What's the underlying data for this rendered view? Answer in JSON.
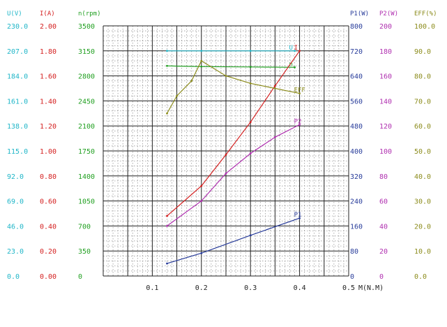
{
  "chart_data": {
    "type": "line",
    "title": "",
    "xlabel": "M(N.M)",
    "x_ticks": [
      "0.1",
      "0.2",
      "0.3",
      "0.4",
      "0.5"
    ],
    "xlim": [
      0,
      0.5
    ],
    "grid": true,
    "axes": [
      {
        "key": "U",
        "header": "U(V)",
        "color": "#20b6c8",
        "ticks": [
          "0.0",
          "23.0",
          "46.0",
          "69.0",
          "92.0",
          "115.0",
          "138.0",
          "161.0",
          "184.0",
          "207.0",
          "230.0"
        ],
        "range": [
          0,
          230
        ]
      },
      {
        "key": "I",
        "header": "I(A)",
        "color": "#d42020",
        "ticks": [
          "0.00",
          "0.20",
          "0.40",
          "0.60",
          "0.80",
          "1.00",
          "1.20",
          "1.40",
          "1.60",
          "1.80",
          "2.00"
        ],
        "range": [
          0,
          2
        ]
      },
      {
        "key": "n",
        "header": "n(rpm)",
        "color": "#22a022",
        "ticks": [
          "0",
          "350",
          "700",
          "1050",
          "1400",
          "1750",
          "2100",
          "2450",
          "2800",
          "3150",
          "3500"
        ],
        "range": [
          0,
          3500
        ]
      },
      {
        "key": "P1",
        "header": "P1(W)",
        "color": "#283c9a",
        "ticks": [
          "0",
          "80",
          "160",
          "240",
          "320",
          "400",
          "480",
          "560",
          "640",
          "720",
          "800"
        ],
        "range": [
          0,
          800
        ]
      },
      {
        "key": "P2",
        "header": "P2(W)",
        "color": "#b030b0",
        "ticks": [
          "0",
          "20",
          "40",
          "60",
          "80",
          "100",
          "120",
          "140",
          "160",
          "180",
          "200"
        ],
        "range": [
          0,
          200
        ]
      },
      {
        "key": "EFF",
        "header": "EFF(%)",
        "color": "#8c8c1c",
        "ticks": [
          "0.0",
          "10.0",
          "20.0",
          "30.0",
          "40.0",
          "50.0",
          "60.0",
          "70.0",
          "80.0",
          "90.0",
          "100.0"
        ],
        "range": [
          0,
          100
        ]
      }
    ],
    "series": [
      {
        "label": "U",
        "axis": "U",
        "color": "#20b6c8",
        "x": [
          0.13,
          0.2,
          0.3,
          0.39
        ],
        "y": [
          207,
          207,
          207,
          207
        ]
      },
      {
        "label": "n",
        "axis": "n",
        "color": "#22a022",
        "x": [
          0.13,
          0.2,
          0.3,
          0.39
        ],
        "y": [
          2940,
          2930,
          2925,
          2920
        ]
      },
      {
        "label": "I",
        "axis": "I",
        "color": "#d42020",
        "x": [
          0.13,
          0.2,
          0.25,
          0.3,
          0.35,
          0.4
        ],
        "y": [
          0.48,
          0.72,
          0.97,
          1.23,
          1.52,
          1.8
        ]
      },
      {
        "label": "P2",
        "axis": "P2",
        "color": "#b030b0",
        "x": [
          0.13,
          0.2,
          0.25,
          0.3,
          0.35,
          0.4
        ],
        "y": [
          40,
          60,
          82,
          98,
          111,
          121
        ]
      },
      {
        "label": "P1",
        "axis": "P1",
        "color": "#283c9a",
        "x": [
          0.13,
          0.2,
          0.3,
          0.4
        ],
        "y": [
          40,
          73,
          130,
          185
        ]
      },
      {
        "label": "EFF",
        "axis": "EFF",
        "color": "#8c8c1c",
        "x": [
          0.13,
          0.15,
          0.18,
          0.2,
          0.25,
          0.3,
          0.35,
          0.4
        ],
        "y": [
          65,
          72,
          78,
          86,
          80,
          77,
          75,
          73
        ]
      }
    ]
  }
}
